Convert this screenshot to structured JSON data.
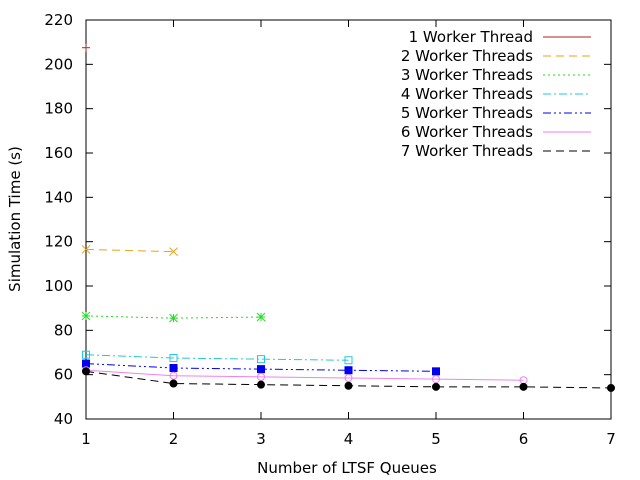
{
  "chart_data": {
    "type": "line",
    "title": "",
    "xlabel": "Number of LTSF Queues",
    "ylabel": "Simulation Time (s)",
    "xlim": [
      1,
      7
    ],
    "ylim": [
      40,
      220
    ],
    "xticks": [
      1,
      2,
      3,
      4,
      5,
      6,
      7
    ],
    "yticks": [
      40,
      60,
      80,
      100,
      120,
      140,
      160,
      180,
      200,
      220
    ],
    "grid": false,
    "legend_position": "top-right",
    "series": [
      {
        "name": "1 Worker Thread",
        "color": "#b22222",
        "dash": "solid",
        "marker": "plus",
        "x": [
          1
        ],
        "y": [
          207.5
        ]
      },
      {
        "name": "2 Worker Threads",
        "color": "#e8a317",
        "dash": "dashed",
        "marker": "x",
        "x": [
          1,
          2
        ],
        "y": [
          116.5,
          115.5
        ]
      },
      {
        "name": "3 Worker Threads",
        "color": "#22dd22",
        "dash": "dotted",
        "marker": "star",
        "x": [
          1,
          2,
          3
        ],
        "y": [
          86.5,
          85.5,
          86
        ]
      },
      {
        "name": "4 Worker Threads",
        "color": "#22c8d8",
        "dash": "dashdot",
        "marker": "square-open",
        "x": [
          1,
          2,
          3,
          4
        ],
        "y": [
          69,
          67.5,
          67,
          66.5
        ]
      },
      {
        "name": "5 Worker Threads",
        "color": "#0000ee",
        "dash": "dashdotdot",
        "marker": "square-filled",
        "x": [
          1,
          2,
          3,
          4,
          5
        ],
        "y": [
          65,
          63,
          62.5,
          62,
          61.5
        ]
      },
      {
        "name": "6 Worker Threads",
        "color": "#ee82ee",
        "dash": "solid",
        "marker": "circle-open",
        "x": [
          1,
          2,
          3,
          4,
          5,
          6
        ],
        "y": [
          62,
          59.5,
          59,
          58.5,
          58,
          57.5
        ]
      },
      {
        "name": "7 Worker Threads",
        "color": "#000000",
        "dash": "dashed",
        "marker": "circle-filled",
        "x": [
          1,
          2,
          3,
          4,
          5,
          6,
          7
        ],
        "y": [
          61.5,
          56,
          55.5,
          55,
          54.5,
          54.5,
          54
        ]
      }
    ]
  }
}
